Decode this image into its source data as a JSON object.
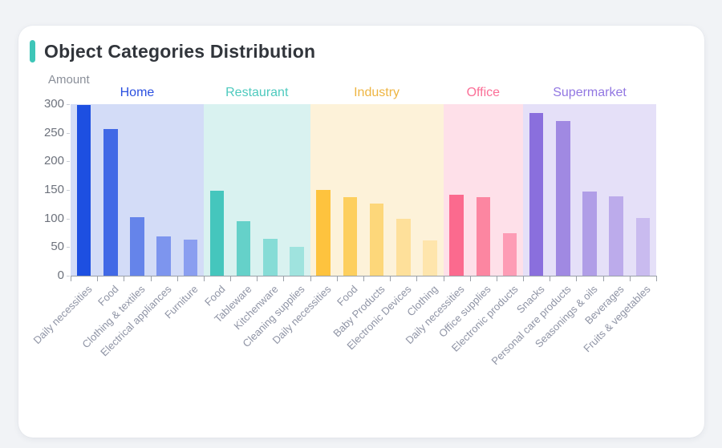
{
  "card": {
    "title": "Object Categories Distribution",
    "accent_color": "#3ec6b8"
  },
  "chart_data": {
    "type": "bar",
    "title": "Object Categories Distribution",
    "xlabel": "",
    "ylabel": "Amount",
    "ylim": [
      0,
      300
    ],
    "yticks": [
      0,
      50,
      100,
      150,
      200,
      250,
      300
    ],
    "xlabel_rotation_deg": 45,
    "grid": false,
    "legend_position": "none",
    "groups": [
      {
        "name": "Home",
        "label_color": "#2b50e0",
        "band_color": "#d3dcf7",
        "categories": [
          "Daily necessities",
          "Food",
          "Clothing & textiles",
          "Electrical appliances",
          "Furniture"
        ],
        "values": [
          298,
          257,
          102,
          69,
          63
        ],
        "bar_colors": [
          "#1d4fe1",
          "#4169e6",
          "#6584ea",
          "#7d95ee",
          "#8a9ef0"
        ]
      },
      {
        "name": "Restaurant",
        "label_color": "#4ecabe",
        "band_color": "#d9f2f0",
        "categories": [
          "Food",
          "Tableware",
          "Kitchenware",
          "Cleaning supplies"
        ],
        "values": [
          148,
          96,
          64,
          50
        ],
        "bar_colors": [
          "#45c6bd",
          "#65d1c9",
          "#86dcd6",
          "#9fe3de"
        ]
      },
      {
        "name": "Industry",
        "label_color": "#eeb542",
        "band_color": "#fdf2d9",
        "categories": [
          "Daily necessities",
          "Food",
          "Baby Products",
          "Electronic Devices",
          "Clothing"
        ],
        "values": [
          150,
          138,
          126,
          99,
          62
        ],
        "bar_colors": [
          "#fec33e",
          "#fdcf5e",
          "#fdd77a",
          "#fee09a",
          "#fee5ac"
        ]
      },
      {
        "name": "Office",
        "label_color": "#fb6f97",
        "band_color": "#fee0e9",
        "categories": [
          "Daily necessities",
          "Office supplies",
          "Electronic products"
        ],
        "values": [
          141,
          138,
          74
        ],
        "bar_colors": [
          "#fb6a8e",
          "#fc86a1",
          "#fd9cb5"
        ]
      },
      {
        "name": "Supermarket",
        "label_color": "#9277e2",
        "band_color": "#e5e0f8",
        "categories": [
          "Snacks",
          "Personal care products",
          "Seasonings & oils",
          "Beverages",
          "Fruits & vegetables"
        ],
        "values": [
          284,
          270,
          147,
          139,
          101
        ],
        "bar_colors": [
          "#8a6fdd",
          "#a089e2",
          "#b09ee7",
          "#bcabeb",
          "#c9bbef"
        ]
      }
    ]
  }
}
